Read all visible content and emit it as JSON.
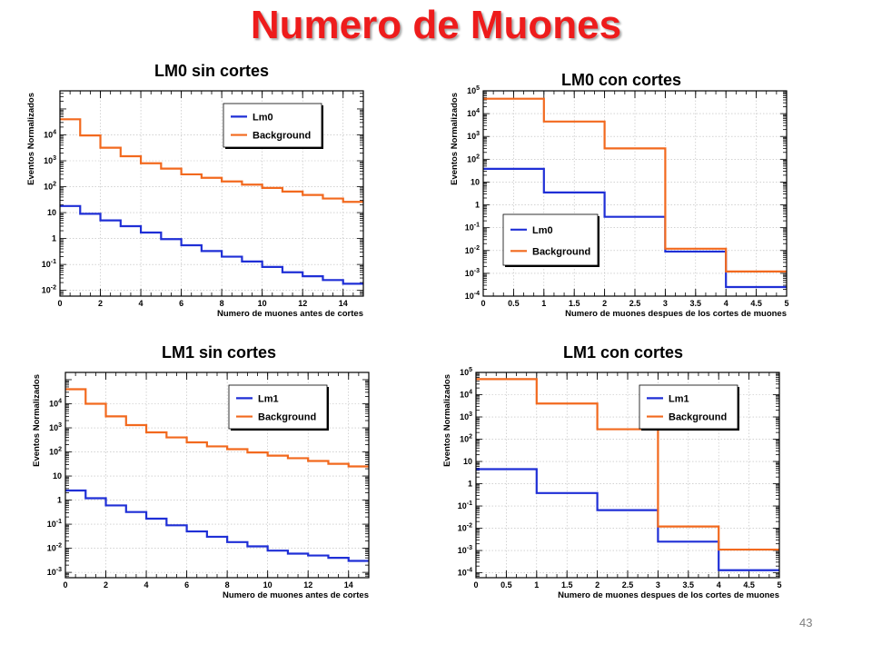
{
  "slide": {
    "title": "Numero de Muones",
    "page_number": "43"
  },
  "colors": {
    "signal": "#1f2fd6",
    "background": "#f2691e",
    "title": "#ee1c1c"
  },
  "chart_data": [
    {
      "type": "line",
      "title": "LM0 sin cortes",
      "xlabel": "Numero de muones antes de cortes",
      "ylabel": "Eventos Normalizados",
      "xlim": [
        0,
        15
      ],
      "ylim": [
        0.006,
        500000
      ],
      "ylog": true,
      "grid": true,
      "legend_position": "top-right",
      "xticks": [
        "0",
        "2",
        "4",
        "6",
        "8",
        "10",
        "12",
        "14"
      ],
      "yticks": [
        "10^-2",
        "10^-1",
        "1",
        "10",
        "10^2",
        "10^3",
        "10^4"
      ],
      "bin_edges": [
        0,
        1,
        2,
        3,
        4,
        5,
        6,
        7,
        8,
        9,
        10,
        11,
        12,
        13,
        14,
        15
      ],
      "series": [
        {
          "name": "Lm0",
          "values": [
            18,
            9,
            5,
            3,
            1.7,
            0.95,
            0.55,
            0.33,
            0.2,
            0.13,
            0.08,
            0.05,
            0.035,
            0.025,
            0.018
          ]
        },
        {
          "name": "Background",
          "values": [
            40000,
            9500,
            3200,
            1500,
            800,
            500,
            300,
            220,
            160,
            120,
            90,
            65,
            48,
            35,
            26
          ]
        }
      ]
    },
    {
      "type": "line",
      "title": "LM0 con cortes",
      "xlabel": "Numero de muones despues de los cortes de muones",
      "ylabel": "Eventos Normalizados",
      "xlim": [
        0,
        5
      ],
      "ylim": [
        0.0001,
        100000
      ],
      "ylog": true,
      "grid": true,
      "legend_position": "bottom-left",
      "xticks": [
        "0",
        "0.5",
        "1",
        "1.5",
        "2",
        "2.5",
        "3",
        "3.5",
        "4",
        "4.5",
        "5"
      ],
      "yticks": [
        "10^-4",
        "10^-3",
        "10^-2",
        "10^-1",
        "1",
        "10",
        "10^2",
        "10^3",
        "10^4",
        "10^5"
      ],
      "bin_edges": [
        0,
        1,
        2,
        3,
        4,
        5
      ],
      "series": [
        {
          "name": "Lm0",
          "values": [
            38,
            3.5,
            0.3,
            0.009,
            0.00025
          ]
        },
        {
          "name": "Background",
          "values": [
            45000,
            4500,
            300,
            0.012,
            0.0012
          ]
        }
      ]
    },
    {
      "type": "line",
      "title": "LM1 sin cortes",
      "xlabel": "Numero de muones antes de cortes",
      "ylabel": "Eventos Normalizados",
      "xlim": [
        0,
        15
      ],
      "ylim": [
        0.0006,
        200000
      ],
      "ylog": true,
      "grid": true,
      "legend_position": "top-right",
      "xticks": [
        "0",
        "2",
        "4",
        "6",
        "8",
        "10",
        "12",
        "14"
      ],
      "yticks": [
        "10^-3",
        "10^-2",
        "10^-1",
        "1",
        "10",
        "10^2",
        "10^3",
        "10^4"
      ],
      "bin_edges": [
        0,
        1,
        2,
        3,
        4,
        5,
        6,
        7,
        8,
        9,
        10,
        11,
        12,
        13,
        14,
        15
      ],
      "series": [
        {
          "name": "Lm1",
          "values": [
            2.5,
            1.2,
            0.6,
            0.32,
            0.17,
            0.09,
            0.05,
            0.03,
            0.018,
            0.012,
            0.008,
            0.006,
            0.005,
            0.004,
            0.003
          ]
        },
        {
          "name": "Background",
          "values": [
            40000,
            10000,
            3000,
            1300,
            650,
            400,
            250,
            170,
            130,
            95,
            70,
            55,
            42,
            32,
            25
          ]
        }
      ]
    },
    {
      "type": "line",
      "title": "LM1 con cortes",
      "xlabel": "Numero de muones despues de los cortes de muones",
      "ylabel": "Eventos Normalizados",
      "xlim": [
        0,
        5
      ],
      "ylim": [
        6e-05,
        100000
      ],
      "ylog": true,
      "grid": true,
      "legend_position": "top-right",
      "xticks": [
        "0",
        "0.5",
        "1",
        "1.5",
        "2",
        "2.5",
        "3",
        "3.5",
        "4",
        "4.5",
        "5"
      ],
      "yticks": [
        "10^-4",
        "10^-3",
        "10^-2",
        "10^-1",
        "1",
        "10",
        "10^2",
        "10^3",
        "10^4",
        "10^5"
      ],
      "bin_edges": [
        0,
        1,
        2,
        3,
        4,
        5
      ],
      "series": [
        {
          "name": "Lm1",
          "values": [
            4.5,
            0.38,
            0.065,
            0.0025,
            0.00013
          ]
        },
        {
          "name": "Background",
          "values": [
            50000,
            4000,
            280,
            0.012,
            0.0011
          ]
        }
      ]
    }
  ]
}
